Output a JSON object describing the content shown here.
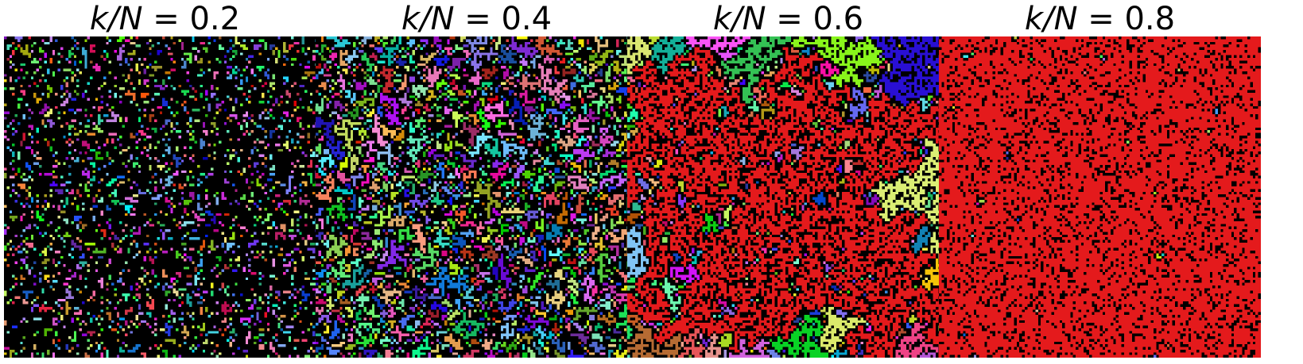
{
  "panels": [
    {
      "title_var": "k/N",
      "title_eq": " = ",
      "title_value": "0.2",
      "value": 0.2
    },
    {
      "title_var": "k/N",
      "title_eq": " = ",
      "title_value": "0.4",
      "value": 0.4
    },
    {
      "title_var": "k/N",
      "title_eq": " = ",
      "title_value": "0.6",
      "value": 0.6
    },
    {
      "title_var": "k/N",
      "title_eq": " = ",
      "title_value": "0.8",
      "value": 0.8
    }
  ],
  "colors": {
    "background": "#000000",
    "giant_cluster": "#e41a1c",
    "page": "#ffffff"
  }
}
